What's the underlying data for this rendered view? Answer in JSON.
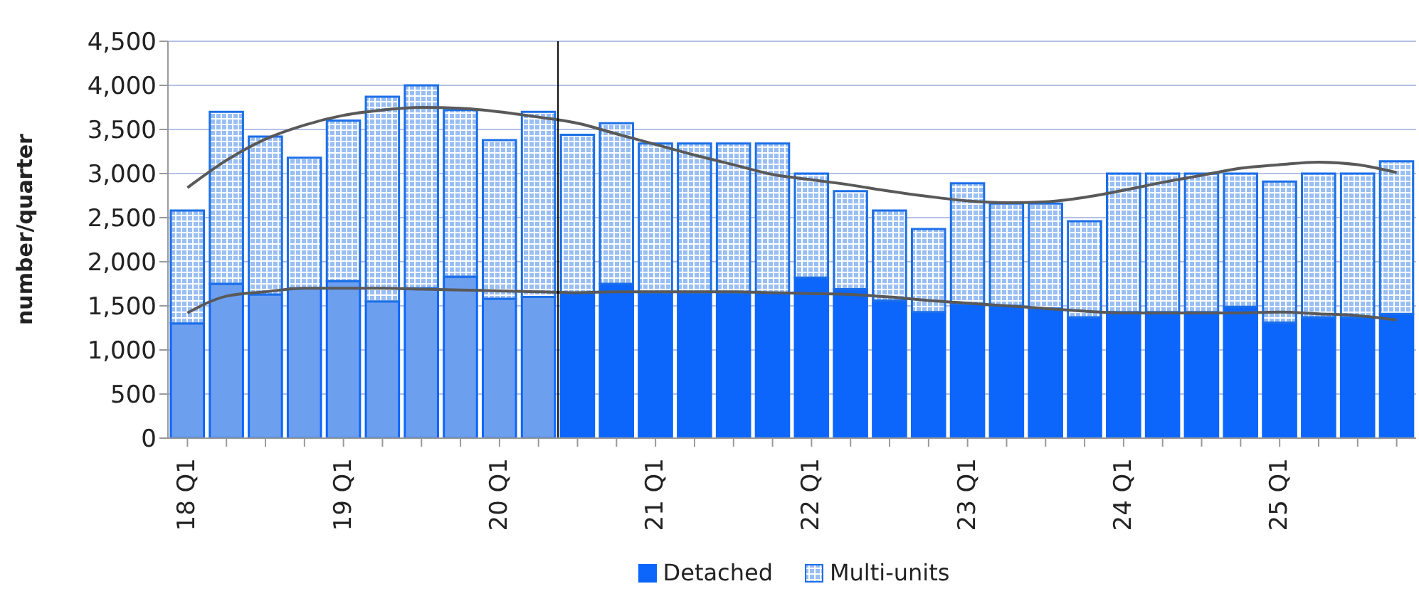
{
  "chart_data": {
    "type": "bar",
    "ylabel": "number/quarter",
    "stacked": true,
    "grid": "y",
    "legend": "bottom",
    "categories": [
      "18 Q1",
      null,
      null,
      null,
      "19 Q1",
      null,
      null,
      null,
      "20 Q1",
      null,
      null,
      null,
      "21 Q1",
      null,
      null,
      null,
      "22 Q1",
      null,
      null,
      null,
      "23 Q1",
      null,
      null,
      null,
      "24 Q1",
      null,
      null,
      null,
      "25 Q1",
      null,
      null,
      null
    ],
    "ylim": [
      0,
      4500
    ],
    "yticks": [
      0,
      500,
      {
        "value": 1000,
        "label": "1,000"
      },
      {
        "value": 1500,
        "label": "1,500"
      },
      {
        "value": 2000,
        "label": "2,000"
      },
      {
        "value": 2500,
        "label": "2,500"
      },
      {
        "value": 3000,
        "label": "3,000"
      },
      {
        "value": 3500,
        "label": "3,500"
      },
      {
        "value": 4000,
        "label": "4,000"
      },
      {
        "value": 4500,
        "label": "4,500"
      }
    ],
    "series": [
      {
        "name": "Detached",
        "color": "#0d66fb",
        "colors": [
          "#6d9fef",
          "#6d9fef",
          "#6d9fef",
          "#6d9fef",
          "#6d9fef",
          "#6d9fef",
          "#6d9fef",
          "#6d9fef",
          "#6d9fef",
          "#6d9fef",
          "#0d66fb",
          "#0d66fb",
          "#0d66fb",
          "#0d66fb",
          "#0d66fb",
          "#0d66fb",
          "#0d66fb",
          "#0d66fb",
          "#0d66fb",
          "#0d66fb",
          "#0d66fb",
          "#0d66fb",
          "#0d66fb",
          "#0d66fb",
          "#0d66fb",
          "#0d66fb",
          "#0d66fb",
          "#0d66fb",
          "#0d66fb",
          "#0d66fb",
          "#0d66fb",
          "#0d66fb"
        ],
        "values": [
          1300,
          1750,
          1630,
          1700,
          1780,
          1550,
          1700,
          1830,
          1580,
          1600,
          1650,
          1750,
          1650,
          1650,
          1650,
          1650,
          1820,
          1690,
          1560,
          1430,
          1520,
          1500,
          1470,
          1370,
          1430,
          1430,
          1430,
          1490,
          1310,
          1370,
          1370,
          1410
        ]
      },
      {
        "name": "Multi-units",
        "color": "#1c6fe8",
        "values": [
          1280,
          1950,
          1790,
          1480,
          1820,
          2320,
          2300,
          1890,
          1800,
          2100,
          1790,
          1820,
          1690,
          1690,
          1690,
          1690,
          1180,
          1110,
          1020,
          940,
          1370,
          1160,
          1190,
          1090,
          1570,
          1570,
          1570,
          1510,
          1600,
          1630,
          1630,
          1730
        ]
      },
      {
        "type": "line",
        "color": "#595959",
        "values": [
          2840,
          3150,
          3390,
          3550,
          3660,
          3720,
          3750,
          3740,
          3700,
          3640,
          3570,
          3450,
          3330,
          3210,
          3100,
          2990,
          2930,
          2870,
          2800,
          2740,
          2690,
          2670,
          2680,
          2730,
          2810,
          2900,
          2980,
          3060,
          3100,
          3130,
          3100,
          3010
        ]
      },
      {
        "type": "line",
        "color": "#595959",
        "values": [
          1420,
          1610,
          1660,
          1700,
          1700,
          1700,
          1690,
          1680,
          1670,
          1660,
          1650,
          1660,
          1660,
          1660,
          1660,
          1650,
          1640,
          1630,
          1600,
          1560,
          1530,
          1500,
          1470,
          1440,
          1420,
          1420,
          1420,
          1420,
          1430,
          1410,
          1390,
          1340
        ]
      }
    ]
  }
}
